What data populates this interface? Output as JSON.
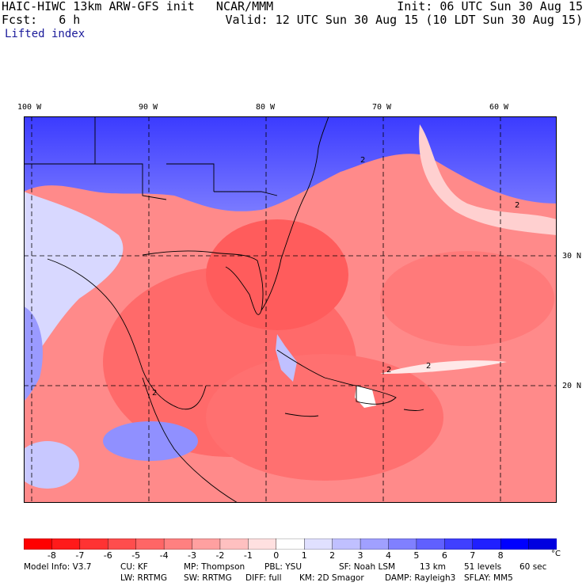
{
  "header": {
    "title": "HAIC-HIWC 13km ARW-GFS init   NCAR/MMM",
    "forecast": "Fcst:   6 h",
    "field": "Lifted index",
    "init": "Init: 06 UTC Sun 30 Aug 15",
    "valid": "Valid: 12 UTC Sun 30 Aug 15 (10 LDT Sun 30 Aug 15)"
  },
  "map_labels": {
    "lon": [
      "100 W",
      "90 W",
      "80 W",
      "70 W",
      "60 W"
    ],
    "lat": [
      "30 N",
      "20 N"
    ],
    "contour": "2"
  },
  "colorbar": {
    "labels": [
      "-8",
      "-7",
      "-6",
      "-5",
      "-4",
      "-3",
      "-2",
      "-1",
      "0",
      "1",
      "2",
      "3",
      "4",
      "5",
      "6",
      "7",
      "8"
    ],
    "unit": "°C",
    "colors": [
      "#ff0000",
      "#ff1a1a",
      "#ff3333",
      "#ff4d4d",
      "#ff6666",
      "#ff8080",
      "#ffa0a0",
      "#ffc0c0",
      "#ffe0e0",
      "#ffffff",
      "#e0e0ff",
      "#c0c0ff",
      "#a0a0ff",
      "#8080ff",
      "#6060ff",
      "#4040ff",
      "#2020ff",
      "#0000ff",
      "#0000e0"
    ]
  },
  "model_info": {
    "line1_a": "Model Info: V3.7",
    "line1_b": "CU: KF",
    "line1_c": "MP: Thompson",
    "line1_d": "PBL: YSU",
    "line1_e": "SF: Noah LSM",
    "line1_f": "13 km",
    "line1_g": "51 levels",
    "line1_h": "60 sec",
    "line2_a": "LW: RRTMG",
    "line2_b": "SW: RRTMG",
    "line2_c": "DIFF: full",
    "line2_d": "KM: 2D Smagor",
    "line2_e": "DAMP: Rayleigh3",
    "line2_f": "SFLAY: MM5"
  }
}
